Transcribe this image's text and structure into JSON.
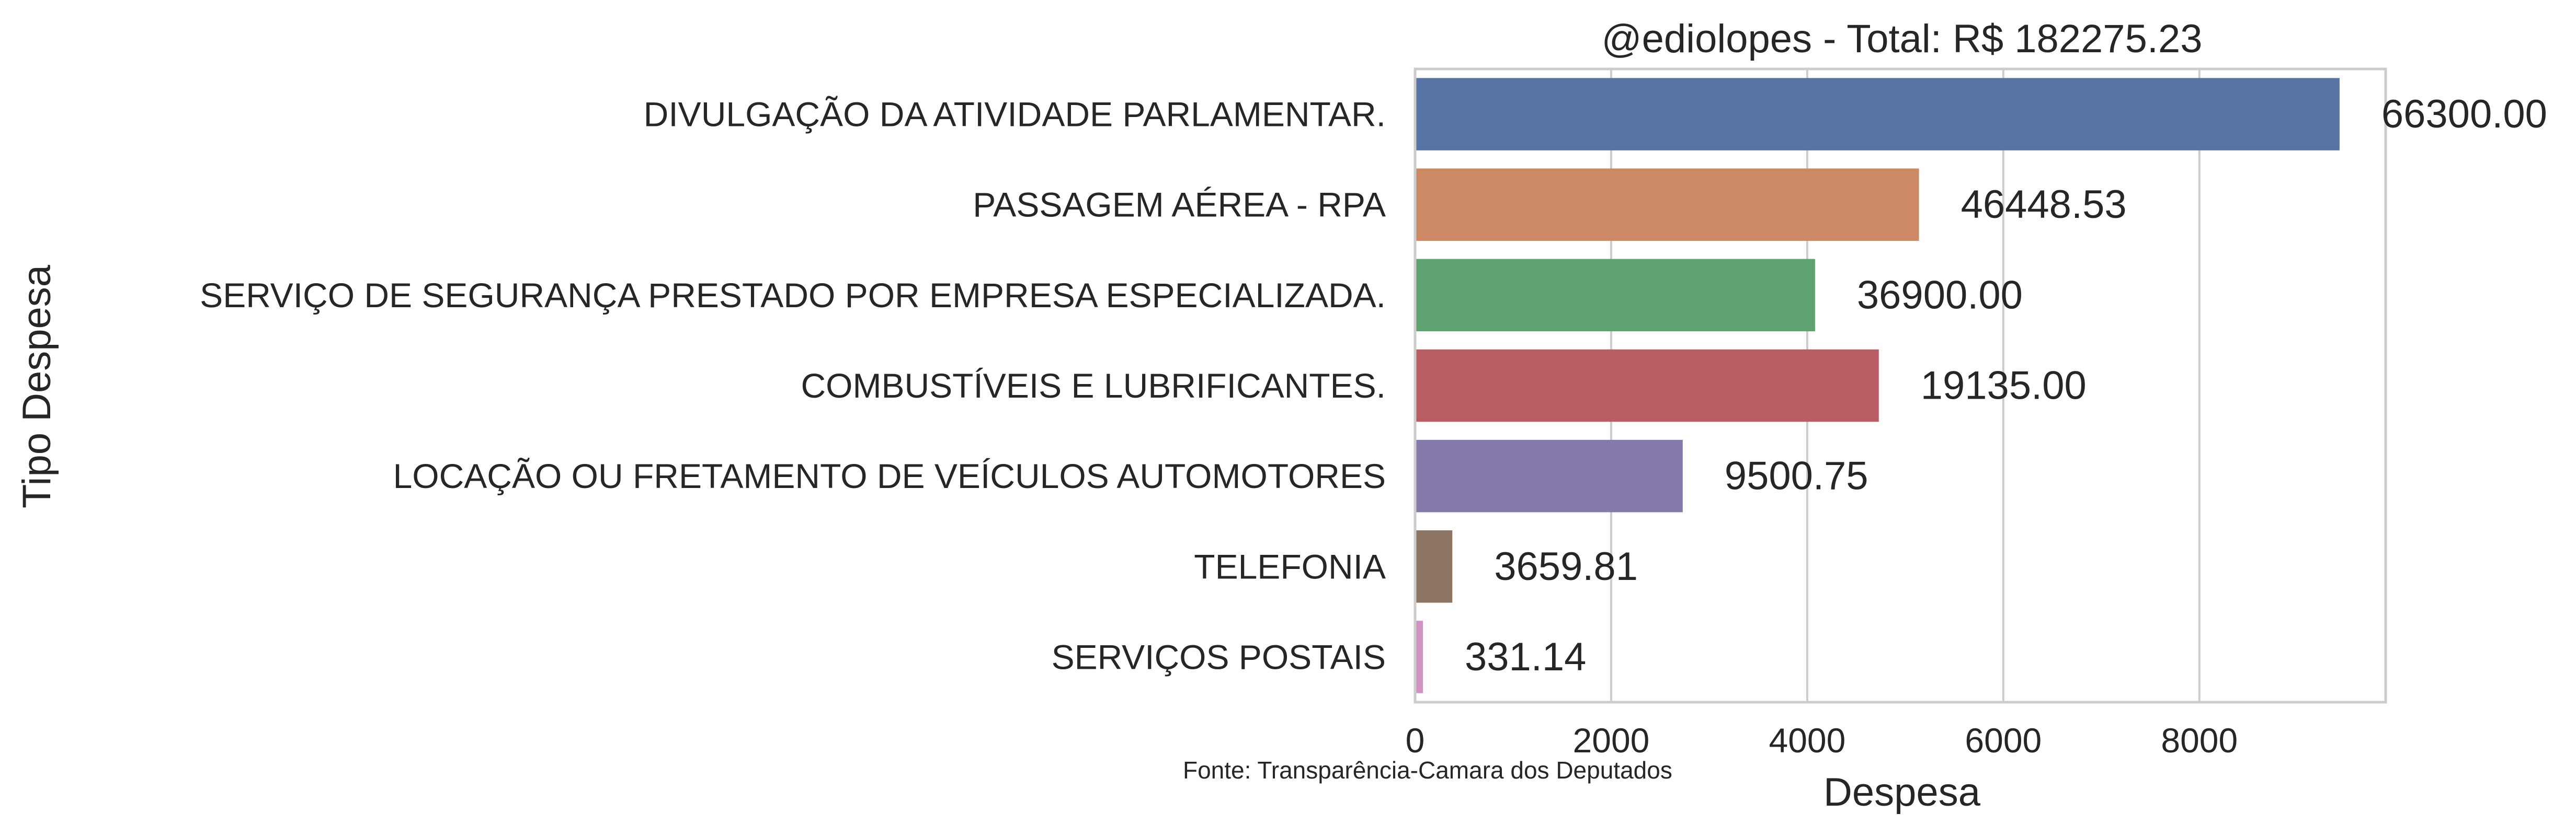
{
  "chart_data": {
    "type": "bar",
    "orientation": "horizontal",
    "title": "@ediolopes - Total: R$ 182275.23",
    "xlabel": "Despesa",
    "ylabel": "Tipo Despesa",
    "source_note": "Fonte: Transparência-Camara dos Deputados",
    "xlim": [
      0,
      9900
    ],
    "x_ticks": [
      0,
      2000,
      4000,
      6000,
      8000
    ],
    "grid": true,
    "categories": [
      "DIVULGAÇÃO DA ATIVIDADE PARLAMENTAR.",
      "PASSAGEM AÉREA - RPA",
      "SERVIÇO DE SEGURANÇA PRESTADO POR EMPRESA ESPECIALIZADA.",
      "COMBUSTÍVEIS E LUBRIFICANTES.",
      "LOCAÇÃO OU FRETAMENTO DE VEÍCULOS AUTOMOTORES",
      "TELEFONIA",
      "SERVIÇOS POSTAIS"
    ],
    "values": [
      9430,
      5140,
      4080,
      4730,
      2730,
      380,
      80
    ],
    "data_labels": [
      "66300.00",
      "46448.53",
      "36900.00",
      "19135.00",
      "9500.75",
      "3659.81",
      "331.14"
    ],
    "colors": [
      "#5874a6",
      "#cd8963",
      "#5ea26f",
      "#b95d62",
      "#8679ab",
      "#8b7562",
      "#d093c2"
    ]
  }
}
